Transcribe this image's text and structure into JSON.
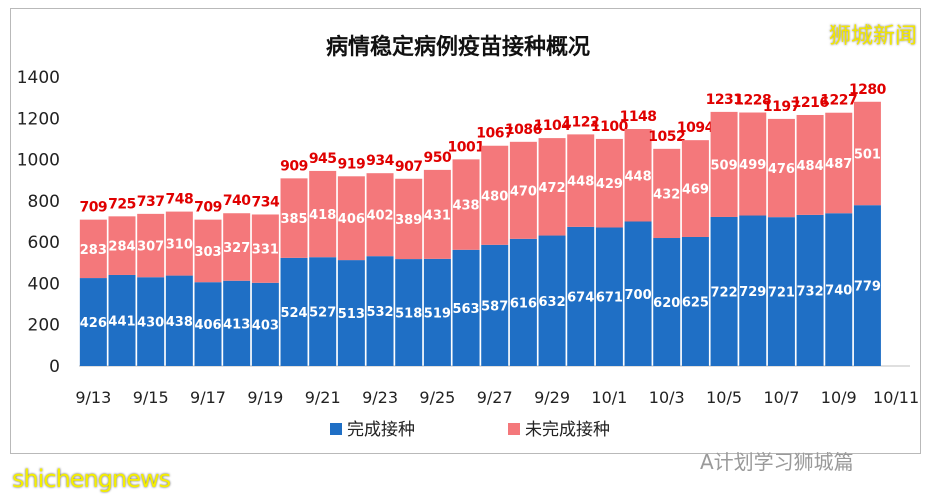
{
  "chart_data": {
    "type": "bar",
    "stacked": true,
    "title": "病情稳定病例疫苗接种概况",
    "categories": [
      "9/13",
      "9/14",
      "9/15",
      "9/16",
      "9/17",
      "9/18",
      "9/19",
      "9/20",
      "9/21",
      "9/22",
      "9/23",
      "9/24",
      "9/25",
      "9/26",
      "9/27",
      "9/28",
      "9/29",
      "9/30",
      "10/1",
      "10/2",
      "10/3",
      "10/4",
      "10/5",
      "10/6",
      "10/7",
      "10/8",
      "10/9",
      "10/10"
    ],
    "xtick_labels": [
      "9/13",
      "9/15",
      "9/17",
      "9/19",
      "9/21",
      "9/23",
      "9/25",
      "9/27",
      "9/29",
      "10/1",
      "10/3",
      "10/5",
      "10/7",
      "10/9",
      "10/11"
    ],
    "series": [
      {
        "name": "完成接种",
        "color": "#1f6fc5",
        "values": [
          426,
          441,
          430,
          438,
          406,
          413,
          403,
          524,
          527,
          513,
          532,
          518,
          519,
          563,
          587,
          616,
          632,
          674,
          671,
          700,
          620,
          625,
          722,
          729,
          721,
          732,
          740,
          779
        ]
      },
      {
        "name": "未完成接种",
        "color": "#f4787b",
        "values": [
          283,
          284,
          307,
          310,
          303,
          327,
          331,
          385,
          418,
          406,
          402,
          389,
          431,
          438,
          480,
          470,
          472,
          448,
          429,
          448,
          432,
          469,
          509,
          499,
          476,
          484,
          487,
          501
        ]
      }
    ],
    "totals": [
      709,
      725,
      737,
      748,
      709,
      740,
      734,
      909,
      945,
      919,
      934,
      907,
      950,
      1001,
      1067,
      1086,
      1104,
      1122,
      1100,
      1148,
      1052,
      1094,
      1231,
      1228,
      1197,
      1216,
      1227,
      1280
    ],
    "total_label_color": "#e00000",
    "ylim": [
      0,
      1400
    ],
    "yticks": [
      0,
      200,
      400,
      600,
      800,
      1000,
      1200,
      1400
    ],
    "grid": false,
    "legend_position": "bottom",
    "xlabel": "",
    "ylabel": ""
  },
  "watermarks": {
    "top_right": "狮城新闻",
    "bottom_left": "shichengnews",
    "bottom_right": "A计划学习狮城篇"
  }
}
